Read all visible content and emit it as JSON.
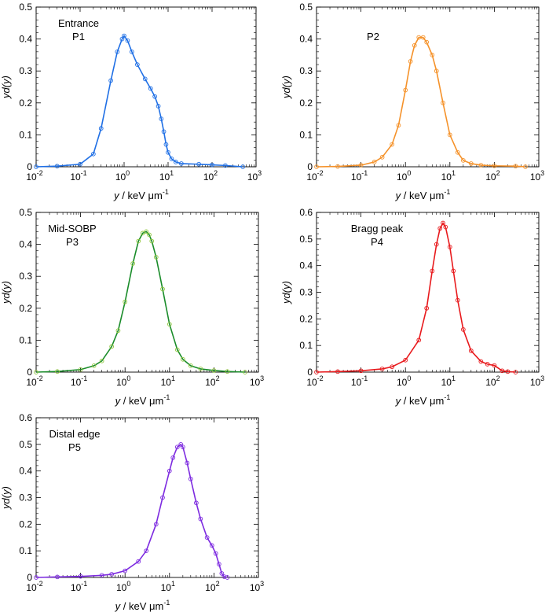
{
  "figure_description_title": "",
  "chart_data": [
    {
      "type": "line",
      "panel_label": "Entrance",
      "point_label": "P1",
      "color": "#1f6fe5",
      "xlabel_italic": "y",
      "xlabel_unit": "keV μm",
      "xlabel_exponent": "-1",
      "ylabel": "yd(y)",
      "xscale": "log",
      "xlim": [
        0.01,
        1000
      ],
      "ylim": [
        0,
        0.5
      ],
      "yticks": [
        "0",
        "0.1",
        "0.2",
        "0.3",
        "0.4",
        "0.5"
      ],
      "xtick_bases": [
        "10",
        "10",
        "10",
        "10",
        "10",
        "10"
      ],
      "xtick_exponents": [
        "-2",
        "-1",
        "0",
        "1",
        "2",
        "3"
      ],
      "x": [
        0.01,
        0.03,
        0.1,
        0.2,
        0.3,
        0.5,
        0.7,
        0.9,
        1.0,
        1.2,
        1.5,
        2,
        3,
        4,
        5,
        6,
        7,
        8,
        9,
        10,
        12,
        15,
        20,
        50,
        100,
        200,
        500
      ],
      "y": [
        0.0,
        0.002,
        0.008,
        0.04,
        0.12,
        0.27,
        0.36,
        0.4,
        0.41,
        0.395,
        0.36,
        0.32,
        0.275,
        0.245,
        0.22,
        0.19,
        0.15,
        0.11,
        0.07,
        0.045,
        0.025,
        0.015,
        0.01,
        0.008,
        0.006,
        0.004,
        0.0
      ]
    },
    {
      "type": "line",
      "panel_label": "",
      "point_label": "P2",
      "color": "#f5922a",
      "xlabel_italic": "y",
      "xlabel_unit": "keV μm",
      "xlabel_exponent": "-1",
      "ylabel": "yd(y)",
      "xscale": "log",
      "xlim": [
        0.01,
        1000
      ],
      "ylim": [
        0,
        0.5
      ],
      "yticks": [
        "0",
        "0.1",
        "0.2",
        "0.3",
        "0.4",
        "0.5"
      ],
      "xtick_bases": [
        "10",
        "10",
        "10",
        "10",
        "10",
        "10"
      ],
      "xtick_exponents": [
        "-2",
        "-1",
        "0",
        "1",
        "2",
        "3"
      ],
      "x": [
        0.01,
        0.03,
        0.1,
        0.2,
        0.3,
        0.5,
        0.7,
        1,
        1.3,
        1.6,
        2,
        2.5,
        3,
        4,
        5,
        7,
        10,
        15,
        20,
        30,
        50,
        100,
        300,
        500
      ],
      "y": [
        0.0,
        0.001,
        0.005,
        0.015,
        0.03,
        0.07,
        0.13,
        0.24,
        0.33,
        0.38,
        0.405,
        0.405,
        0.39,
        0.35,
        0.3,
        0.2,
        0.1,
        0.045,
        0.02,
        0.01,
        0.005,
        0.003,
        0.002,
        0.0
      ]
    },
    {
      "type": "line",
      "panel_label": "Mid-SOBP",
      "point_label": "P3",
      "color": "#1a8c2a",
      "marker_color": "#8fc63c",
      "xlabel_italic": "y",
      "xlabel_unit": "keV μm",
      "xlabel_exponent": "-1",
      "ylabel": "yd(y)",
      "xscale": "log",
      "xlim": [
        0.01,
        1000
      ],
      "ylim": [
        0,
        0.5
      ],
      "yticks": [
        "0",
        "0.1",
        "0.2",
        "0.3",
        "0.4",
        "0.5"
      ],
      "xtick_bases": [
        "10",
        "10",
        "10",
        "10",
        "10",
        "10"
      ],
      "xtick_exponents": [
        "-2",
        "-1",
        "0",
        "1",
        "2",
        "3"
      ],
      "x": [
        0.01,
        0.03,
        0.1,
        0.2,
        0.3,
        0.5,
        0.7,
        1,
        1.5,
        2,
        2.5,
        3,
        3.5,
        4,
        5,
        7,
        10,
        15,
        20,
        30,
        50,
        100,
        200,
        500
      ],
      "y": [
        0.0,
        0.002,
        0.008,
        0.02,
        0.035,
        0.08,
        0.13,
        0.22,
        0.34,
        0.41,
        0.435,
        0.44,
        0.43,
        0.41,
        0.36,
        0.26,
        0.15,
        0.07,
        0.04,
        0.02,
        0.01,
        0.005,
        0.002,
        0.0
      ]
    },
    {
      "type": "line",
      "panel_label": "Bragg peak",
      "point_label": "P4",
      "color": "#e8191c",
      "xlabel_italic": "y",
      "xlabel_unit": "keV μm",
      "xlabel_exponent": "-1",
      "ylabel": "yd(y)",
      "xscale": "log",
      "xlim": [
        0.01,
        1000
      ],
      "ylim": [
        0,
        0.6
      ],
      "yticks": [
        "0",
        "0.1",
        "0.2",
        "0.3",
        "0.4",
        "0.5",
        "0.6"
      ],
      "xtick_bases": [
        "10",
        "10",
        "10",
        "10",
        "10",
        "10"
      ],
      "xtick_exponents": [
        "-2",
        "-1",
        "0",
        "1",
        "2",
        "3"
      ],
      "x": [
        0.01,
        0.03,
        0.1,
        0.3,
        0.5,
        1,
        2,
        3,
        4,
        5,
        6,
        7,
        8,
        10,
        12,
        15,
        20,
        30,
        50,
        70,
        100,
        150,
        200,
        300
      ],
      "y": [
        0.0,
        0.002,
        0.005,
        0.012,
        0.02,
        0.045,
        0.12,
        0.24,
        0.38,
        0.48,
        0.54,
        0.56,
        0.545,
        0.47,
        0.38,
        0.27,
        0.16,
        0.08,
        0.04,
        0.03,
        0.025,
        0.005,
        0.002,
        0.0
      ]
    },
    {
      "type": "line",
      "panel_label": "Distal edge",
      "point_label": "P5",
      "color": "#7d2be0",
      "xlabel_italic": "y",
      "xlabel_unit": "keV μm",
      "xlabel_exponent": "-1",
      "ylabel": "yd(y)",
      "xscale": "log",
      "xlim": [
        0.01,
        1000
      ],
      "ylim": [
        0,
        0.6
      ],
      "yticks": [
        "0",
        "0.1",
        "0.2",
        "0.3",
        "0.4",
        "0.5",
        "0.6"
      ],
      "xtick_bases": [
        "10",
        "10",
        "10",
        "10",
        "10",
        "10"
      ],
      "xtick_exponents": [
        "-2",
        "-1",
        "0",
        "1",
        "2",
        "3"
      ],
      "x": [
        0.01,
        0.03,
        0.1,
        0.3,
        0.5,
        1,
        2,
        3,
        5,
        7,
        10,
        12,
        15,
        18,
        20,
        25,
        30,
        40,
        50,
        70,
        90,
        110,
        130,
        150,
        170,
        200
      ],
      "y": [
        0.0,
        0.002,
        0.004,
        0.008,
        0.012,
        0.025,
        0.06,
        0.1,
        0.2,
        0.3,
        0.4,
        0.45,
        0.49,
        0.5,
        0.49,
        0.43,
        0.37,
        0.28,
        0.22,
        0.15,
        0.12,
        0.09,
        0.05,
        0.015,
        0.003,
        0.0
      ]
    }
  ]
}
